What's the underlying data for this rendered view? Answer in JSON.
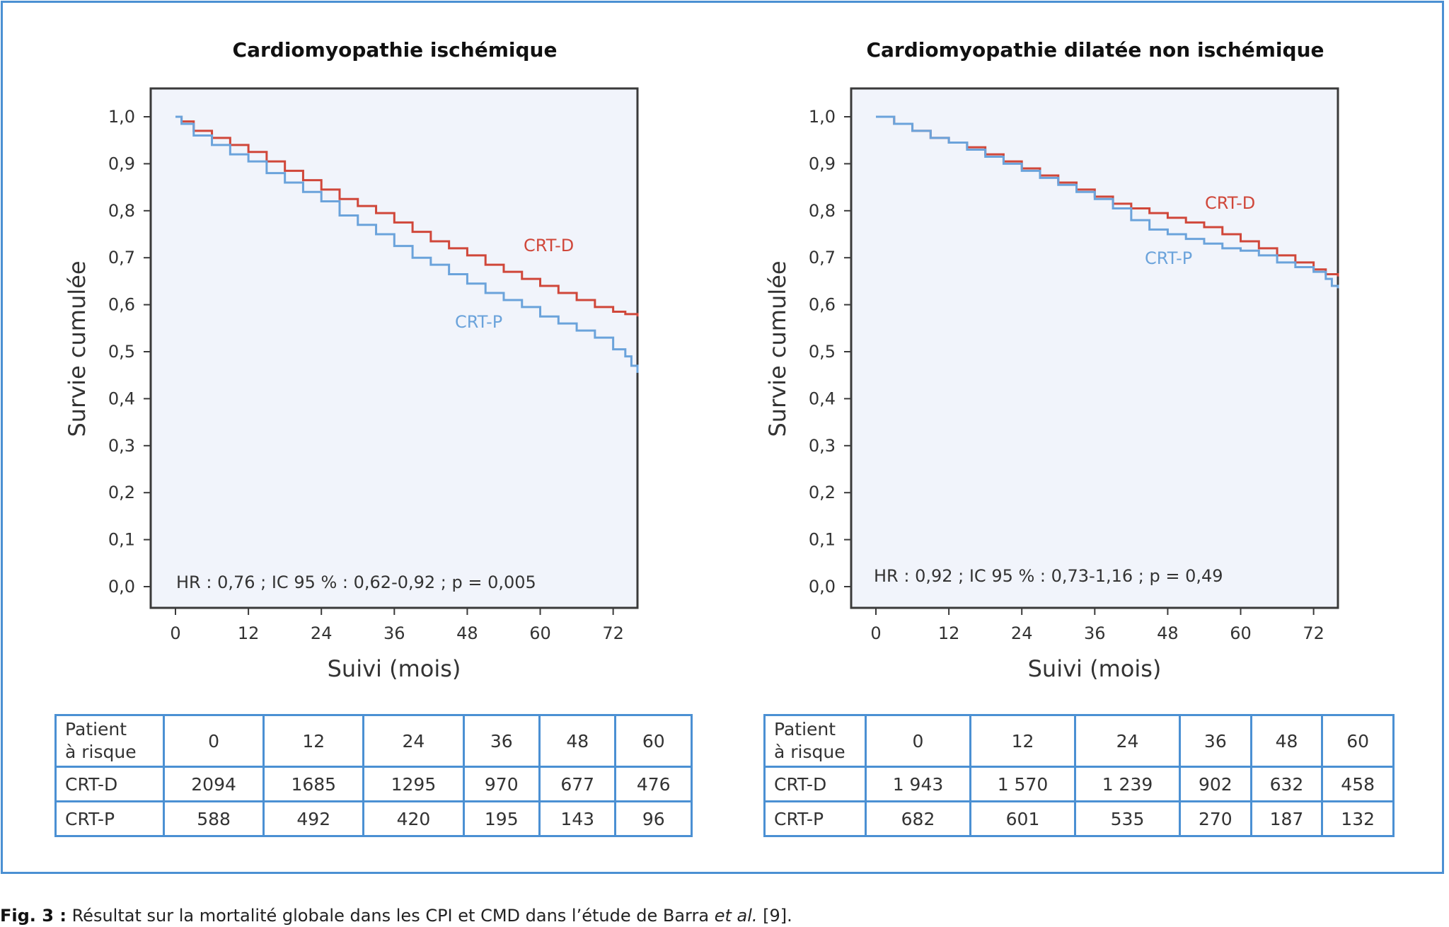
{
  "chart_data": [
    {
      "type": "line",
      "title": "Cardiomyopathie ischémique",
      "xlabel": "Suivi (mois)",
      "ylabel": "Survie cumulée",
      "xlim": [
        0,
        76
      ],
      "ylim": [
        0,
        1.0
      ],
      "x_ticks": [
        "0",
        "12",
        "24",
        "36",
        "48",
        "60",
        "72"
      ],
      "y_ticks": [
        "0,0",
        "0,1",
        "0,2",
        "0,3",
        "0,4",
        "0,5",
        "0,6",
        "0,7",
        "0,8",
        "0,9",
        "1,0"
      ],
      "annotation": "HR : 0,76 ; IC 95 % : 0,62-0,92 ; p = 0,005",
      "series": [
        {
          "name": "CRT-D",
          "color": "#d0473a",
          "x": [
            0,
            1,
            3,
            6,
            9,
            12,
            15,
            18,
            21,
            24,
            27,
            30,
            33,
            36,
            39,
            42,
            45,
            48,
            51,
            54,
            57,
            60,
            63,
            66,
            69,
            72,
            74,
            76
          ],
          "y": [
            1.0,
            0.99,
            0.97,
            0.955,
            0.94,
            0.925,
            0.905,
            0.885,
            0.865,
            0.845,
            0.825,
            0.81,
            0.795,
            0.775,
            0.755,
            0.735,
            0.72,
            0.705,
            0.685,
            0.67,
            0.655,
            0.64,
            0.625,
            0.61,
            0.595,
            0.585,
            0.58,
            0.575
          ]
        },
        {
          "name": "CRT-P",
          "color": "#6ba3db",
          "x": [
            0,
            1,
            3,
            6,
            9,
            12,
            15,
            18,
            21,
            24,
            27,
            30,
            33,
            36,
            39,
            42,
            45,
            48,
            51,
            54,
            57,
            60,
            63,
            66,
            69,
            72,
            74,
            75,
            76
          ],
          "y": [
            1.0,
            0.985,
            0.96,
            0.94,
            0.92,
            0.905,
            0.88,
            0.86,
            0.84,
            0.82,
            0.79,
            0.77,
            0.75,
            0.725,
            0.7,
            0.685,
            0.665,
            0.645,
            0.625,
            0.61,
            0.595,
            0.575,
            0.56,
            0.545,
            0.53,
            0.505,
            0.49,
            0.47,
            0.455
          ]
        }
      ]
    },
    {
      "type": "line",
      "title": "Cardiomyopathie dilatée non ischémique",
      "xlabel": "Suivi (mois)",
      "ylabel": "Survie cumulée",
      "xlim": [
        0,
        76
      ],
      "ylim": [
        0,
        1.0
      ],
      "x_ticks": [
        "0",
        "12",
        "24",
        "36",
        "48",
        "60",
        "72"
      ],
      "y_ticks": [
        "0,0",
        "0,1",
        "0,2",
        "0,3",
        "0,4",
        "0,5",
        "0,6",
        "0,7",
        "0,8",
        "0,9",
        "1,0"
      ],
      "annotation": "HR : 0,92 ; IC 95 % : 0,73-1,16 ; p = 0,49",
      "series": [
        {
          "name": "CRT-D",
          "color": "#d0473a",
          "x": [
            0,
            3,
            6,
            9,
            12,
            15,
            18,
            21,
            24,
            27,
            30,
            33,
            36,
            39,
            42,
            45,
            48,
            51,
            54,
            57,
            60,
            63,
            66,
            69,
            72,
            74,
            76
          ],
          "y": [
            1.0,
            0.985,
            0.97,
            0.955,
            0.945,
            0.935,
            0.92,
            0.905,
            0.89,
            0.875,
            0.86,
            0.845,
            0.83,
            0.815,
            0.805,
            0.795,
            0.785,
            0.775,
            0.765,
            0.75,
            0.735,
            0.72,
            0.705,
            0.69,
            0.675,
            0.665,
            0.66
          ]
        },
        {
          "name": "CRT-P",
          "color": "#6ba3db",
          "x": [
            0,
            3,
            6,
            9,
            12,
            15,
            18,
            21,
            24,
            27,
            30,
            33,
            36,
            39,
            42,
            45,
            48,
            51,
            54,
            57,
            60,
            63,
            66,
            69,
            72,
            74,
            75,
            76
          ],
          "y": [
            1.0,
            0.985,
            0.97,
            0.955,
            0.945,
            0.93,
            0.915,
            0.9,
            0.885,
            0.87,
            0.855,
            0.84,
            0.825,
            0.805,
            0.78,
            0.76,
            0.75,
            0.74,
            0.73,
            0.72,
            0.715,
            0.705,
            0.69,
            0.68,
            0.67,
            0.655,
            0.64,
            0.635
          ]
        }
      ]
    }
  ],
  "risk_tables": [
    {
      "header_label": [
        "Patient",
        "à risque"
      ],
      "months": [
        "0",
        "12",
        "24",
        "36",
        "48",
        "60"
      ],
      "rows": [
        {
          "label": "CRT-D",
          "values": [
            "2094",
            "1685",
            "1295",
            "970",
            "677",
            "476"
          ]
        },
        {
          "label": "CRT-P",
          "values": [
            "588",
            "492",
            "420",
            "195",
            "143",
            "96"
          ]
        }
      ]
    },
    {
      "header_label": [
        "Patient",
        "à risque"
      ],
      "months": [
        "0",
        "12",
        "24",
        "36",
        "48",
        "60"
      ],
      "rows": [
        {
          "label": "CRT-D",
          "values": [
            "1 943",
            "1 570",
            "1 239",
            "902",
            "632",
            "458"
          ]
        },
        {
          "label": "CRT-P",
          "values": [
            "682",
            "601",
            "535",
            "270",
            "187",
            "132"
          ]
        }
      ]
    }
  ],
  "caption": {
    "label": "Fig. 3 :",
    "text": "Résultat sur la mortalité globale dans les CPI et CMD dans l’étude de Barra ",
    "emph": "et al.",
    "ref": " [9]."
  }
}
